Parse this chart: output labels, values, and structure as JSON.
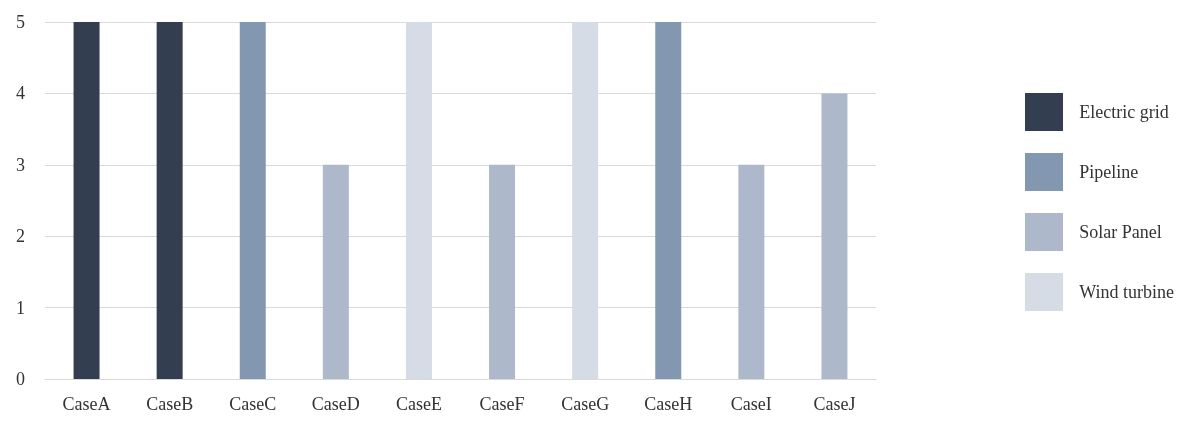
{
  "chart_data": {
    "type": "bar",
    "categories": [
      "CaseA",
      "CaseB",
      "CaseC",
      "CaseD",
      "CaseE",
      "CaseF",
      "CaseG",
      "CaseH",
      "CaseI",
      "CaseJ"
    ],
    "stacked": true,
    "series": [
      {
        "name": "Electric grid",
        "color": "#333f50",
        "values": [
          5,
          5,
          null,
          null,
          null,
          null,
          null,
          null,
          null,
          null
        ]
      },
      {
        "name": "Pipeline",
        "color": "#8497b0",
        "values": [
          null,
          null,
          5,
          null,
          null,
          null,
          null,
          5,
          null,
          null
        ]
      },
      {
        "name": "Solar Panel",
        "color": "#adb9ca",
        "values": [
          null,
          null,
          null,
          3,
          null,
          3,
          null,
          null,
          3,
          4
        ]
      },
      {
        "name": "Wind turbine",
        "color": "#d6dce5",
        "values": [
          null,
          null,
          null,
          null,
          5,
          null,
          5,
          null,
          null,
          null
        ]
      }
    ],
    "ylim": [
      0,
      5
    ],
    "yticks": [
      0,
      1,
      2,
      3,
      4,
      5
    ],
    "grid": "y",
    "legend": "right"
  }
}
